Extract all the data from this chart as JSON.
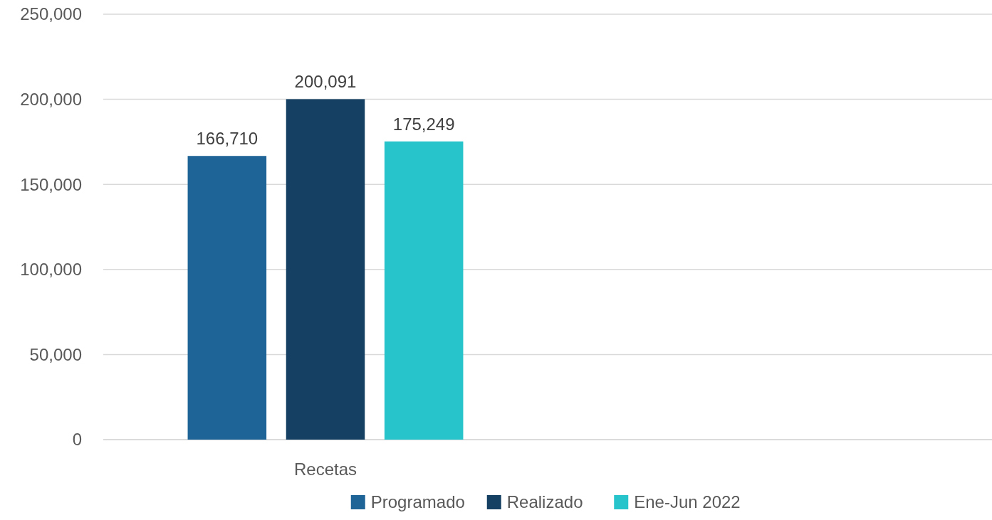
{
  "chart_data": {
    "type": "bar",
    "categories": [
      "Recetas",
      null
    ],
    "series": [
      {
        "name": "Programado",
        "color": "#1f6496",
        "values": [
          166710,
          null
        ],
        "value_labels": [
          "166,710",
          null
        ]
      },
      {
        "name": "Realizado",
        "color": "#164063",
        "values": [
          200091,
          null
        ],
        "value_labels": [
          "200,091",
          null
        ]
      },
      {
        "name": "Ene-Jun 2022",
        "color": "#27c4cc",
        "values": [
          175249,
          null
        ],
        "value_labels": [
          "175,249",
          null
        ]
      }
    ],
    "ylim": [
      0,
      250000
    ],
    "yticks": [
      {
        "value": 0,
        "label": "0"
      },
      {
        "value": 50000,
        "label": "50,000"
      },
      {
        "value": 100000,
        "label": "100,000"
      },
      {
        "value": 150000,
        "label": "150,000"
      },
      {
        "value": 200000,
        "label": "200,000"
      },
      {
        "value": 250000,
        "label": "250,000"
      }
    ],
    "grid": "y",
    "legend": "bottom"
  }
}
